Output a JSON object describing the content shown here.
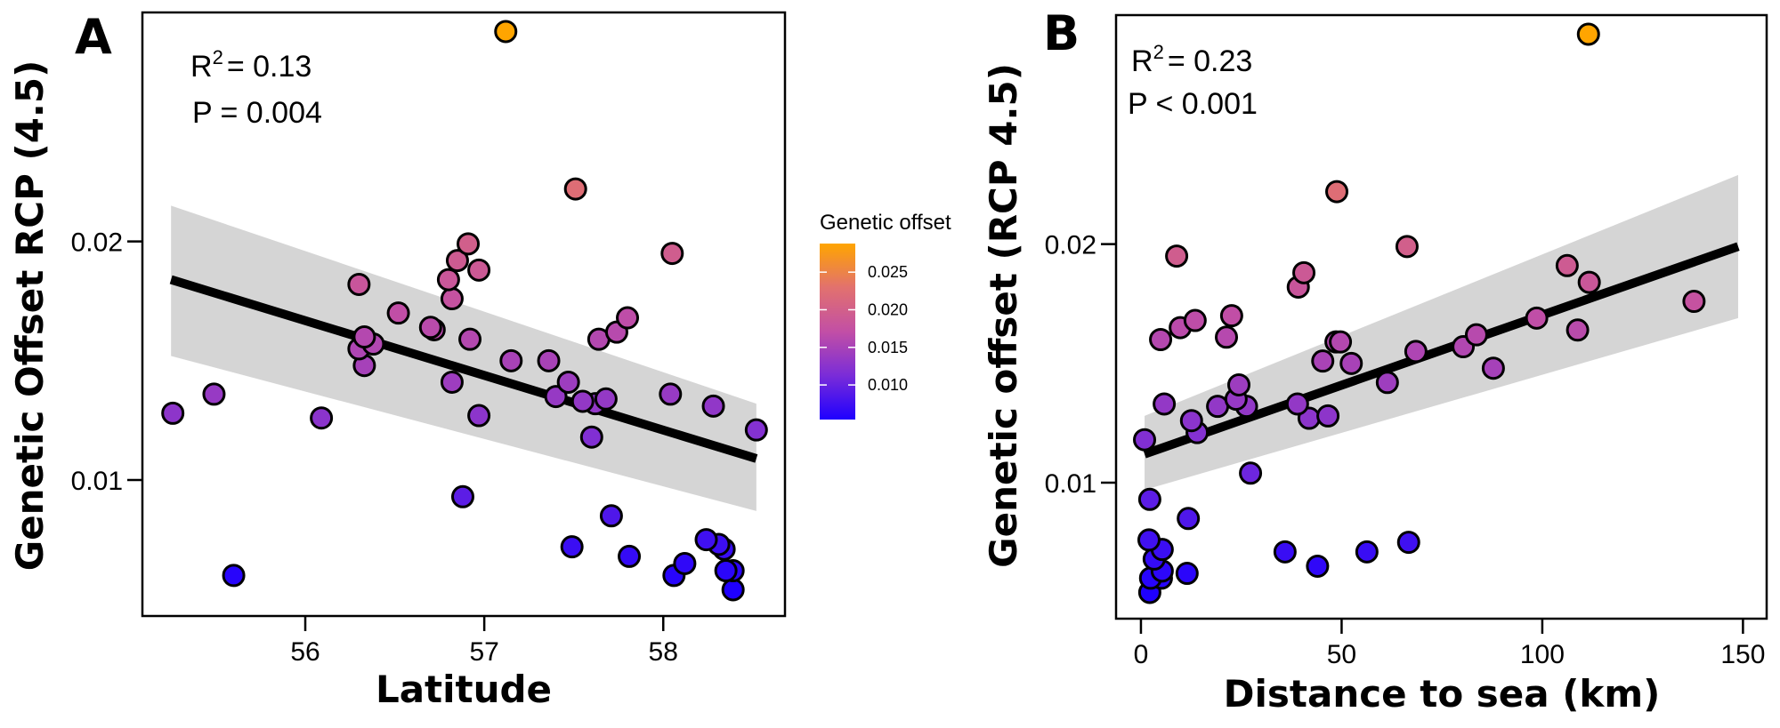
{
  "chart_data": [
    {
      "type": "scatter",
      "panel": "A",
      "xlabel": "Latitude",
      "ylabel": "Genetic Offset RCP (4.5)",
      "xlim": [
        55.09,
        58.68
      ],
      "ylim": [
        0.0043,
        0.0296
      ],
      "xticks": [
        56,
        57,
        58
      ],
      "xtick_labels": [
        "56",
        "57",
        "58"
      ],
      "yticks": [
        0.01,
        0.02
      ],
      "ytick_labels": [
        "0.01",
        "0.02"
      ],
      "stats": {
        "r2_label": "R",
        "r2_sup": "2",
        "r2_value": "= 0.13",
        "p_label": "P =  0.004"
      },
      "regression": {
        "x": [
          55.25,
          58.52
        ],
        "y": [
          0.0184,
          0.0109
        ],
        "ci_lower": [
          0.0152,
          0.0087
        ],
        "ci_upper": [
          0.0215,
          0.0132
        ]
      },
      "grid": false,
      "points": [
        {
          "x": 57.12,
          "y": 0.0288
        },
        {
          "x": 57.51,
          "y": 0.0222
        },
        {
          "x": 56.91,
          "y": 0.0199
        },
        {
          "x": 58.05,
          "y": 0.0195
        },
        {
          "x": 56.85,
          "y": 0.0192
        },
        {
          "x": 56.97,
          "y": 0.0188
        },
        {
          "x": 56.8,
          "y": 0.0184
        },
        {
          "x": 56.3,
          "y": 0.0182
        },
        {
          "x": 56.82,
          "y": 0.0176
        },
        {
          "x": 56.52,
          "y": 0.017
        },
        {
          "x": 57.8,
          "y": 0.0168
        },
        {
          "x": 56.7,
          "y": 0.0164
        },
        {
          "x": 57.74,
          "y": 0.0162
        },
        {
          "x": 56.72,
          "y": 0.0163
        },
        {
          "x": 57.64,
          "y": 0.0159
        },
        {
          "x": 56.92,
          "y": 0.0159
        },
        {
          "x": 56.33,
          "y": 0.016
        },
        {
          "x": 56.38,
          "y": 0.0157
        },
        {
          "x": 56.3,
          "y": 0.0155
        },
        {
          "x": 56.33,
          "y": 0.0148
        },
        {
          "x": 57.15,
          "y": 0.015
        },
        {
          "x": 57.36,
          "y": 0.015
        },
        {
          "x": 56.82,
          "y": 0.0141
        },
        {
          "x": 57.47,
          "y": 0.0141
        },
        {
          "x": 57.4,
          "y": 0.0135
        },
        {
          "x": 55.49,
          "y": 0.0136
        },
        {
          "x": 58.04,
          "y": 0.0136
        },
        {
          "x": 57.55,
          "y": 0.0133
        },
        {
          "x": 57.62,
          "y": 0.0132
        },
        {
          "x": 57.68,
          "y": 0.0134
        },
        {
          "x": 58.28,
          "y": 0.0131
        },
        {
          "x": 55.26,
          "y": 0.0128
        },
        {
          "x": 56.09,
          "y": 0.0126
        },
        {
          "x": 56.97,
          "y": 0.0127
        },
        {
          "x": 58.52,
          "y": 0.0121
        },
        {
          "x": 57.6,
          "y": 0.0118
        },
        {
          "x": 56.88,
          "y": 0.0093
        },
        {
          "x": 57.71,
          "y": 0.0085
        },
        {
          "x": 58.24,
          "y": 0.0075
        },
        {
          "x": 58.31,
          "y": 0.0073
        },
        {
          "x": 58.34,
          "y": 0.0071
        },
        {
          "x": 57.49,
          "y": 0.0072
        },
        {
          "x": 57.81,
          "y": 0.0068
        },
        {
          "x": 58.12,
          "y": 0.0065
        },
        {
          "x": 58.39,
          "y": 0.0062
        },
        {
          "x": 58.35,
          "y": 0.0062
        },
        {
          "x": 58.06,
          "y": 0.006
        },
        {
          "x": 55.6,
          "y": 0.006
        },
        {
          "x": 58.39,
          "y": 0.0054
        }
      ]
    },
    {
      "type": "scatter",
      "panel": "B",
      "xlabel": "Distance to sea (km)",
      "ylabel": "Genetic offset (RCP 4.5)",
      "xlim": [
        -6.2,
        155.9
      ],
      "ylim": [
        0.0043,
        0.0296
      ],
      "xticks": [
        0,
        50,
        100,
        150
      ],
      "xtick_labels": [
        "0",
        "50",
        "100",
        "150"
      ],
      "yticks": [
        0.01,
        0.02
      ],
      "ytick_labels": [
        "0.01",
        "0.02"
      ],
      "stats": {
        "r2_label": "R",
        "r2_sup": "2",
        "r2_value": "= 0.23",
        "p_label": "P < 0.001"
      },
      "regression": {
        "x": [
          0.9,
          148.8
        ],
        "y": [
          0.0112,
          0.0199
        ],
        "ci_lower": [
          0.0097,
          0.0169
        ],
        "ci_upper": [
          0.0128,
          0.0229
        ]
      },
      "grid": false,
      "points": [
        {
          "x": 111.5,
          "y": 0.0288
        },
        {
          "x": 48.8,
          "y": 0.0222
        },
        {
          "x": 66.3,
          "y": 0.0199
        },
        {
          "x": 8.9,
          "y": 0.0195
        },
        {
          "x": 106.2,
          "y": 0.0191
        },
        {
          "x": 40.6,
          "y": 0.0188
        },
        {
          "x": 111.7,
          "y": 0.0184
        },
        {
          "x": 39.2,
          "y": 0.0182
        },
        {
          "x": 137.8,
          "y": 0.0176
        },
        {
          "x": 22.6,
          "y": 0.017
        },
        {
          "x": 98.6,
          "y": 0.0169
        },
        {
          "x": 13.5,
          "y": 0.0168
        },
        {
          "x": 9.8,
          "y": 0.0165
        },
        {
          "x": 108.8,
          "y": 0.0164
        },
        {
          "x": 83.6,
          "y": 0.0162
        },
        {
          "x": 21.3,
          "y": 0.0161
        },
        {
          "x": 4.9,
          "y": 0.016
        },
        {
          "x": 48.6,
          "y": 0.0159
        },
        {
          "x": 49.7,
          "y": 0.0159
        },
        {
          "x": 80.3,
          "y": 0.0157
        },
        {
          "x": 68.5,
          "y": 0.0155
        },
        {
          "x": 52.4,
          "y": 0.015
        },
        {
          "x": 45.3,
          "y": 0.0151
        },
        {
          "x": 87.8,
          "y": 0.0148
        },
        {
          "x": 24.4,
          "y": 0.0141
        },
        {
          "x": 61.4,
          "y": 0.0142
        },
        {
          "x": 23.7,
          "y": 0.0135
        },
        {
          "x": 39.0,
          "y": 0.0133
        },
        {
          "x": 5.8,
          "y": 0.0133
        },
        {
          "x": 26.3,
          "y": 0.0132
        },
        {
          "x": 19.1,
          "y": 0.0132
        },
        {
          "x": 41.9,
          "y": 0.0127
        },
        {
          "x": 46.6,
          "y": 0.0128
        },
        {
          "x": 12.6,
          "y": 0.0126
        },
        {
          "x": 14.0,
          "y": 0.0121
        },
        {
          "x": 0.9,
          "y": 0.0118
        },
        {
          "x": 27.3,
          "y": 0.0104
        },
        {
          "x": 2.2,
          "y": 0.0093
        },
        {
          "x": 11.8,
          "y": 0.0085
        },
        {
          "x": 2.0,
          "y": 0.0076
        },
        {
          "x": 66.7,
          "y": 0.0075
        },
        {
          "x": 5.3,
          "y": 0.0072
        },
        {
          "x": 35.9,
          "y": 0.0071
        },
        {
          "x": 56.3,
          "y": 0.0071
        },
        {
          "x": 3.3,
          "y": 0.0068
        },
        {
          "x": 44.0,
          "y": 0.0065
        },
        {
          "x": 5.3,
          "y": 0.0063
        },
        {
          "x": 11.5,
          "y": 0.0062
        },
        {
          "x": 5.1,
          "y": 0.006
        },
        {
          "x": 2.4,
          "y": 0.006
        },
        {
          "x": 2.2,
          "y": 0.0054
        }
      ]
    }
  ],
  "legend": {
    "title": "Genetic offset",
    "type": "colorbar",
    "range": [
      0.0054,
      0.0288
    ],
    "ticks": [
      0.025,
      0.02,
      0.015,
      0.01
    ],
    "tick_labels": [
      "0.025",
      "0.020",
      "0.015",
      "0.010"
    ],
    "colors": {
      "low": "#2a00ff",
      "mid": "#b443b8",
      "high": "#ffa500"
    }
  },
  "panels": {
    "a_letter": "A",
    "b_letter": "B"
  },
  "style": {
    "point_outline": "#000000",
    "line_color": "#000000",
    "band_color": "#d5d5d5"
  }
}
